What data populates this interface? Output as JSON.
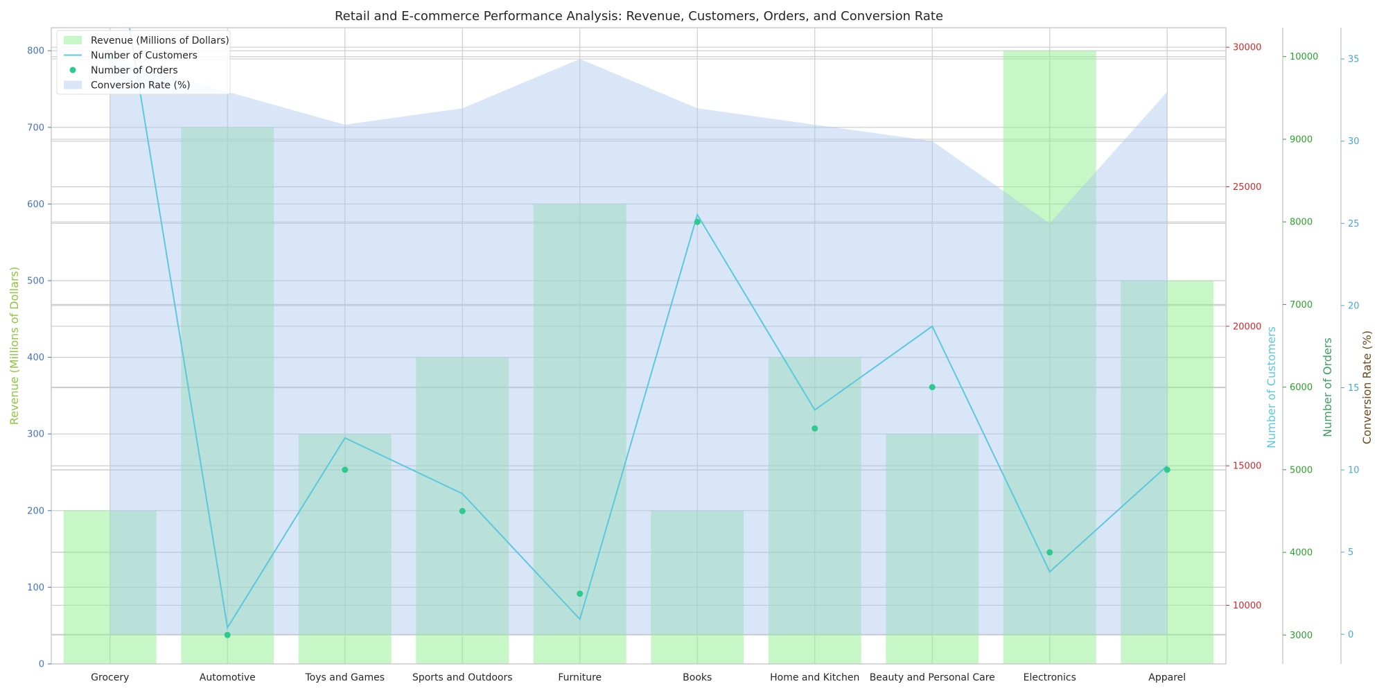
{
  "chart_data": {
    "type": "bar",
    "title": "Retail and E-commerce Performance Analysis: Revenue, Customers, Orders, and Conversion Rate",
    "categories": [
      "Grocery",
      "Automotive",
      "Toys and Games",
      "Sports and Outdoors",
      "Furniture",
      "Books",
      "Home and Kitchen",
      "Beauty and Personal Care",
      "Electronics",
      "Apparel"
    ],
    "series": [
      {
        "name": "Revenue (Millions of Dollars)",
        "type": "bar",
        "axis": "revenue",
        "color": "#90EE90",
        "values": [
          200,
          700,
          300,
          400,
          600,
          200,
          400,
          300,
          800,
          500
        ]
      },
      {
        "name": "Number of Customers",
        "type": "line",
        "axis": "customers",
        "color": "#5BC8DC",
        "values": [
          35000,
          9200,
          16000,
          14000,
          9500,
          24000,
          17000,
          20000,
          11200,
          15000
        ]
      },
      {
        "name": "Number of Orders",
        "type": "scatter",
        "axis": "orders",
        "color": "#2EC98E",
        "values": [
          10000,
          3000,
          5000,
          4500,
          3500,
          8000,
          5500,
          6000,
          4000,
          5000
        ]
      },
      {
        "name": "Conversion Rate (%)",
        "type": "area",
        "axis": "conversion",
        "color": "#A8C8F0",
        "values": [
          35,
          33,
          31,
          32,
          35,
          32,
          31,
          30,
          25,
          33
        ]
      }
    ],
    "axes": {
      "revenue": {
        "label": "Revenue (Millions of Dollars)",
        "ylim": [
          0,
          830
        ],
        "ticks": [
          0,
          100,
          200,
          300,
          400,
          500,
          600,
          700,
          800
        ],
        "label_color": "#8CC63F",
        "tick_color": "#4472C4"
      },
      "customers": {
        "label": "Number of Customers",
        "ylim": [
          7900,
          30700
        ],
        "ticks": [
          10000,
          15000,
          20000,
          25000,
          30000
        ],
        "label_color": "#5BC8DC",
        "tick_color": "#D62728"
      },
      "orders": {
        "label": "Number of Orders",
        "ylim": [
          2650,
          10350
        ],
        "ticks": [
          3000,
          4000,
          5000,
          6000,
          7000,
          8000,
          9000,
          10000
        ],
        "label_color": "#3CA060",
        "tick_color": "#2CA02C"
      },
      "conversion": {
        "label": "Conversion Rate (%)",
        "ylim": [
          -1.8,
          36.9
        ],
        "ticks": [
          0,
          5,
          10,
          15,
          20,
          25,
          30,
          35
        ],
        "label_color": "#6B4A1E",
        "tick_color": "#4AA8D0"
      }
    },
    "legend": {
      "position": "top-left",
      "entries": [
        "Revenue (Millions of Dollars)",
        "Number of Customers",
        "Number of Orders",
        "Conversion Rate (%)"
      ]
    },
    "grid": true
  }
}
